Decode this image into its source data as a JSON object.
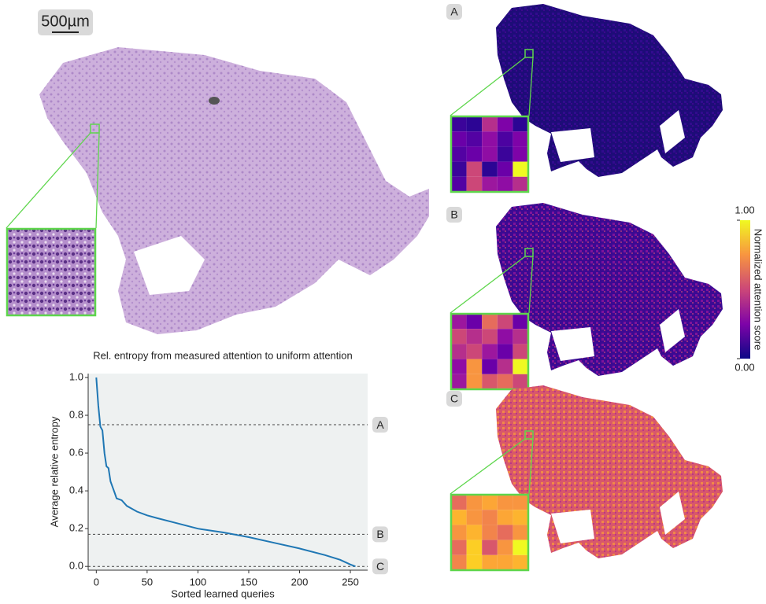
{
  "scale_bar": "500µm",
  "panels": [
    {
      "label": "A"
    },
    {
      "label": "B"
    },
    {
      "label": "C"
    }
  ],
  "colorbar": {
    "label": "Normalized attention score",
    "ticks": [
      {
        "value": 0,
        "label": "0.00"
      },
      {
        "value": 1,
        "label": "1.00"
      }
    ]
  },
  "chart_data": {
    "type": "line",
    "title": "Rel. entropy from measured attention to uniform attention",
    "x_label": "Sorted learned queries",
    "y_label": "Average relative entropy",
    "x": [
      0,
      2,
      4,
      6,
      8,
      10,
      12,
      14,
      16,
      18,
      20,
      25,
      30,
      40,
      50,
      60,
      75,
      100,
      125,
      150,
      175,
      200,
      225,
      240,
      250,
      255
    ],
    "values": [
      1.0,
      0.85,
      0.74,
      0.72,
      0.6,
      0.53,
      0.52,
      0.45,
      0.42,
      0.39,
      0.36,
      0.35,
      0.32,
      0.29,
      0.27,
      0.255,
      0.235,
      0.2,
      0.18,
      0.155,
      0.125,
      0.095,
      0.06,
      0.035,
      0.01,
      0.0
    ],
    "color": "#1f77b4",
    "xlim": [
      -8,
      267
    ],
    "ylim": [
      -0.02,
      1.0
    ],
    "xticks": [
      0,
      50,
      100,
      150,
      200,
      250
    ],
    "yticks": [
      {
        "value": 0,
        "label": "0.0"
      },
      {
        "value": 0.2,
        "label": "0.2"
      },
      {
        "value": 0.4,
        "label": "0.4"
      },
      {
        "value": 0.6,
        "label": "0.6"
      },
      {
        "value": 0.8,
        "label": "0.8"
      },
      {
        "value": 1.0,
        "label": "1.0"
      }
    ],
    "reference_lines": [
      {
        "value": 0.75,
        "label": "A"
      },
      {
        "value": 0.17,
        "label": "B"
      },
      {
        "value": 0.0,
        "label": "C"
      }
    ]
  }
}
